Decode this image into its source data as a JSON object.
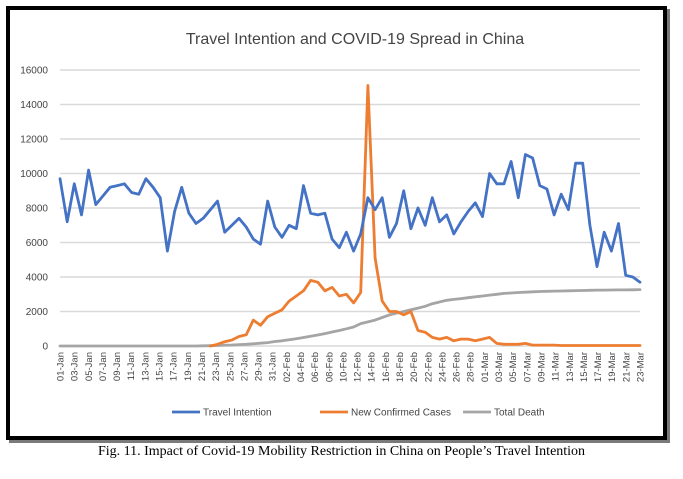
{
  "caption": "Fig. 11. Impact of Covid-19 Mobility Restriction in China on People’s Travel Intention",
  "chart_data": {
    "type": "line",
    "title": "Travel Intention and COVID-19 Spread in China",
    "xlabel": "",
    "ylabel": "",
    "ylim": [
      0,
      16000
    ],
    "yticks": [
      0,
      2000,
      4000,
      6000,
      8000,
      10000,
      12000,
      14000,
      16000
    ],
    "grid": true,
    "legend_position": "bottom",
    "x_tick_labels": [
      "01-Jan",
      "03-Jan",
      "05-Jan",
      "07-Jan",
      "09-Jan",
      "11-Jan",
      "13-Jan",
      "15-Jan",
      "17-Jan",
      "19-Jan",
      "21-Jan",
      "23-Jan",
      "25-Jan",
      "27-Jan",
      "29-Jan",
      "31-Jan",
      "02-Feb",
      "04-Feb",
      "06-Feb",
      "08-Feb",
      "10-Feb",
      "12-Feb",
      "14-Feb",
      "16-Feb",
      "18-Feb",
      "20-Feb",
      "22-Feb",
      "24-Feb",
      "26-Feb",
      "28-Feb",
      "01-Mar",
      "03-Mar",
      "05-Mar",
      "07-Mar",
      "09-Mar",
      "11-Mar",
      "13-Mar",
      "15-Mar",
      "17-Mar",
      "19-Mar",
      "21-Mar",
      "23-Mar"
    ],
    "series": [
      {
        "name": "Travel Intention",
        "color": "#4472c4",
        "values": [
          9700,
          7200,
          9400,
          7600,
          10200,
          8200,
          8700,
          9200,
          9300,
          9400,
          8900,
          8800,
          9700,
          9200,
          8600,
          5500,
          7800,
          9200,
          7700,
          7100,
          7400,
          7900,
          8400,
          6600,
          7000,
          7400,
          6900,
          6200,
          5900,
          8400,
          6900,
          6300,
          7000,
          6800,
          9300,
          7700,
          7600,
          7700,
          6200,
          5700,
          6600,
          5500,
          6500,
          8600,
          7900,
          8600,
          6300,
          7100,
          9000,
          6800,
          8000,
          7000,
          8600,
          7200,
          7600,
          6500,
          7200,
          7800,
          8300,
          7500,
          10000,
          9400,
          9400,
          10700,
          8600,
          11100,
          10900,
          9300,
          9100,
          7600,
          8800,
          7900,
          10600,
          10600,
          7000,
          4600,
          6600,
          5500,
          7100,
          4100,
          4000,
          3700
        ]
      },
      {
        "name": "New Confirmed Cases",
        "color": "#ed7d31",
        "values": [
          null,
          null,
          null,
          null,
          null,
          null,
          null,
          null,
          null,
          null,
          null,
          null,
          null,
          null,
          null,
          null,
          null,
          null,
          null,
          null,
          null,
          0,
          100,
          250,
          350,
          550,
          650,
          1500,
          1200,
          1700,
          1900,
          2100,
          2600,
          2900,
          3200,
          3800,
          3700,
          3200,
          3400,
          2900,
          3000,
          2500,
          3100,
          15100,
          5100,
          2600,
          2000,
          2000,
          1800,
          2000,
          900,
          800,
          500,
          400,
          500,
          300,
          400,
          400,
          300,
          400,
          500,
          150,
          100,
          100,
          100,
          150,
          50,
          50,
          50,
          50,
          30,
          30,
          30,
          30,
          30,
          30,
          30,
          30,
          30,
          30,
          30,
          30
        ]
      },
      {
        "name": "Total Death",
        "color": "#a5a5a5",
        "values": [
          0,
          0,
          0,
          0,
          0,
          0,
          0,
          0,
          0,
          0,
          0,
          0,
          0,
          0,
          0,
          0,
          0,
          0,
          0,
          0,
          10,
          20,
          30,
          50,
          60,
          80,
          100,
          130,
          160,
          200,
          260,
          300,
          360,
          420,
          490,
          560,
          640,
          720,
          810,
          900,
          1000,
          1100,
          1300,
          1400,
          1500,
          1650,
          1800,
          1900,
          2000,
          2100,
          2200,
          2300,
          2450,
          2550,
          2650,
          2700,
          2750,
          2800,
          2850,
          2900,
          2950,
          3000,
          3050,
          3070,
          3100,
          3120,
          3140,
          3160,
          3170,
          3180,
          3190,
          3200,
          3210,
          3220,
          3230,
          3240,
          3240,
          3245,
          3250,
          3255,
          3260,
          3270
        ]
      }
    ]
  }
}
